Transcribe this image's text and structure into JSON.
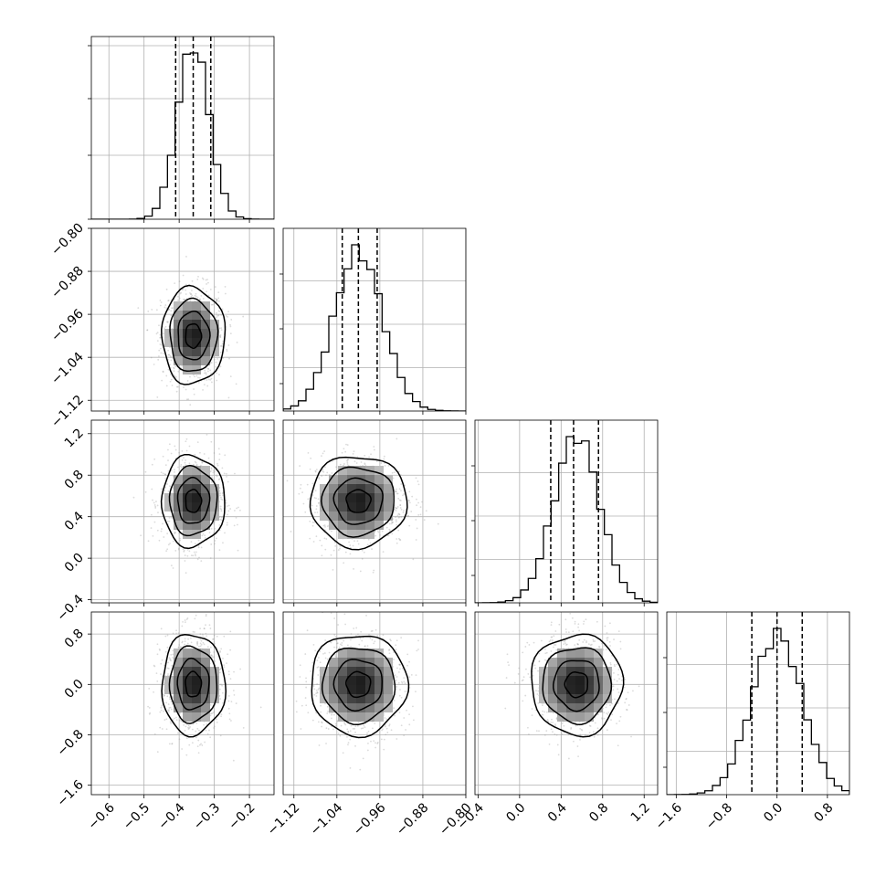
{
  "chart_data": {
    "type": "corner",
    "grid": true,
    "quantile_lines": "dashed",
    "axes_ticks": {
      "x": [
        [
          "−0.6",
          "−0.5",
          "−0.4",
          "−0.3",
          "−0.2"
        ],
        [
          "−1.12",
          "−1.04",
          "−0.96",
          "−0.88",
          "−0.80"
        ],
        [
          "−0.4",
          "0.0",
          "0.4",
          "0.8",
          "1.2"
        ],
        [
          "−1.6",
          "−0.8",
          "0.0",
          "0.8"
        ]
      ],
      "y": [
        [],
        [
          "−0.80",
          "−0.88",
          "−0.96",
          "−1.04",
          "−1.12"
        ],
        [
          "1.2",
          "0.8",
          "0.4",
          "0.0",
          "−0.4"
        ],
        [
          "0.8",
          "0.0",
          "−0.8",
          "−1.6"
        ]
      ]
    },
    "ranges": [
      [
        -0.65,
        -0.13
      ],
      [
        -1.14,
        -0.8
      ],
      [
        -0.43,
        1.33
      ],
      [
        -1.75,
        1.15
      ]
    ],
    "tick_values": [
      [
        -0.6,
        -0.5,
        -0.4,
        -0.3,
        -0.2
      ],
      [
        -1.12,
        -1.04,
        -0.96,
        -0.88,
        -0.8
      ],
      [
        -0.4,
        0.0,
        0.4,
        0.8,
        1.2
      ],
      [
        -1.6,
        -0.8,
        0.0,
        0.8
      ]
    ],
    "variables": [
      {
        "mean": -0.36,
        "sd": 0.045,
        "quantiles": [
          -0.41,
          -0.36,
          -0.31
        ]
      },
      {
        "mean": -1.0,
        "sd": 0.045,
        "quantiles": [
          -1.03,
          -1.0,
          -0.965
        ]
      },
      {
        "mean": 0.55,
        "sd": 0.22,
        "quantiles": [
          0.3,
          0.52,
          0.76
        ]
      },
      {
        "mean": 0.0,
        "sd": 0.4,
        "quantiles": [
          -0.4,
          0.0,
          0.4
        ]
      }
    ]
  }
}
